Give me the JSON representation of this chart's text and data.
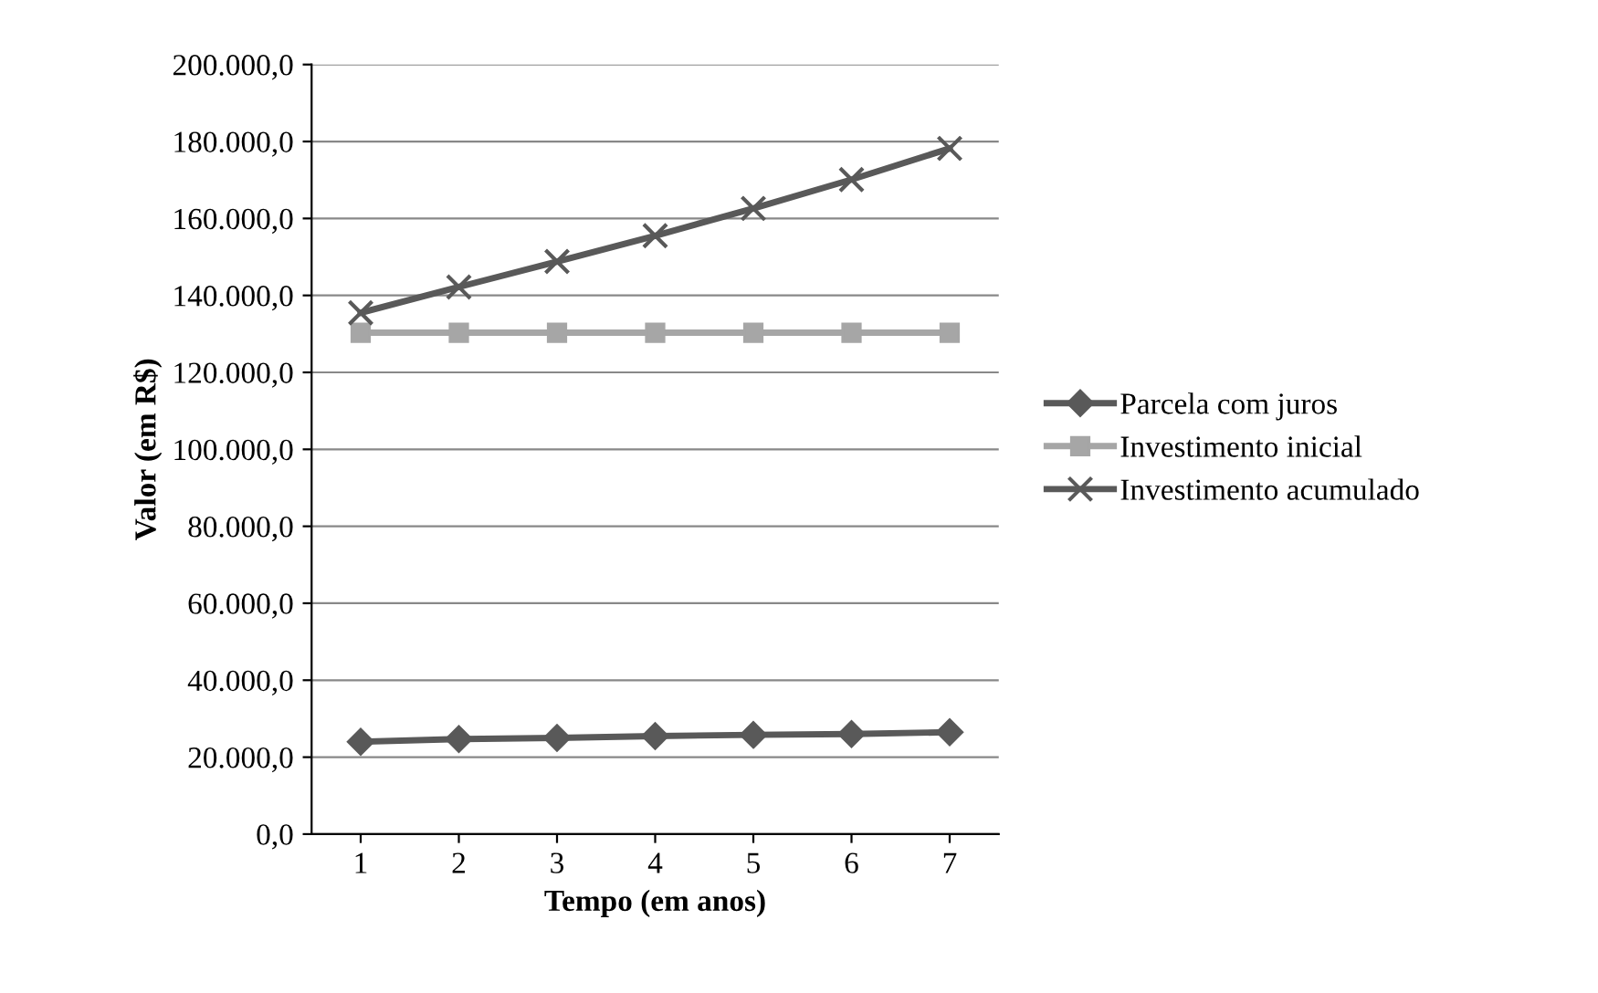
{
  "chart_data": {
    "type": "line",
    "xlabel": "Tempo (em anos)",
    "ylabel": "Valor (em R$)",
    "categories": [
      "1",
      "2",
      "3",
      "4",
      "5",
      "6",
      "7"
    ],
    "series": [
      {
        "name": "Parcela com juros",
        "color": "#595959",
        "marker": "diamond",
        "values": [
          24000,
          24700,
          25000,
          25500,
          25800,
          26000,
          26500
        ]
      },
      {
        "name": "Investimento inicial",
        "color": "#a6a6a6",
        "marker": "square",
        "values": [
          130300,
          130300,
          130300,
          130300,
          130300,
          130300,
          130300
        ]
      },
      {
        "name": "Investimento acumulado",
        "color": "#595959",
        "marker": "cross",
        "values": [
          135500,
          142200,
          148800,
          155500,
          162600,
          170100,
          178200
        ]
      }
    ],
    "ylim": [
      0,
      200000
    ],
    "yticks": [
      {
        "value": 0,
        "label": "0,0"
      },
      {
        "value": 20000,
        "label": "20.000,0"
      },
      {
        "value": 40000,
        "label": "40.000,0"
      },
      {
        "value": 60000,
        "label": "60.000,0"
      },
      {
        "value": 80000,
        "label": "80.000,0"
      },
      {
        "value": 100000,
        "label": "100.000,0"
      },
      {
        "value": 120000,
        "label": "120.000,0"
      },
      {
        "value": 140000,
        "label": "140.000,0"
      },
      {
        "value": 160000,
        "label": "160.000,0"
      },
      {
        "value": 180000,
        "label": "180.000,0"
      },
      {
        "value": 200000,
        "label": "200.000,0"
      }
    ],
    "grid": "y",
    "legend": "right",
    "line_style": "solid"
  }
}
